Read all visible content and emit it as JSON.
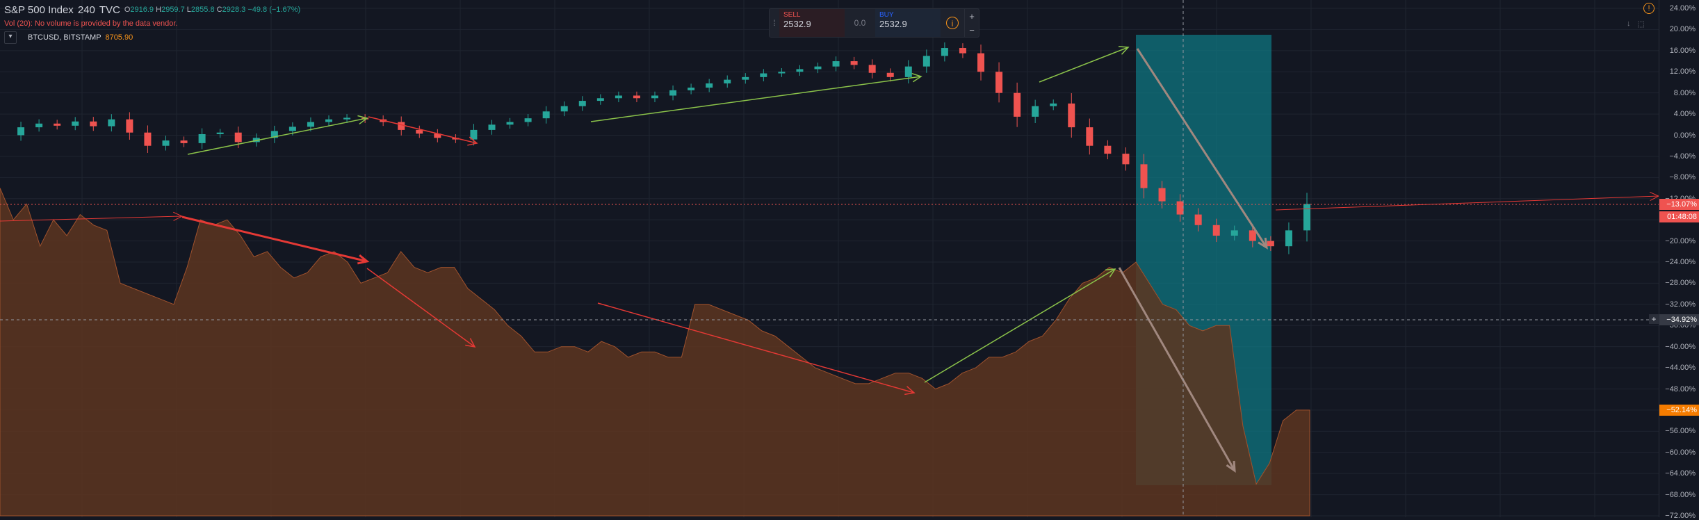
{
  "legend": {
    "symbol": "S&P 500 Index",
    "interval": "240",
    "exchange": "TVC",
    "open_label": "O",
    "open": "2916.9",
    "high_label": "H",
    "high": "2959.7",
    "low_label": "L",
    "low": "2855.8",
    "close_label": "C",
    "close": "2928.3",
    "change": "−49.8 (−1.67%)",
    "volume_notice": "Vol (20): No volume is provided by the data vendor.",
    "compare_symbol": "BTCUSD, BITSTAMP",
    "compare_value": "8705.90",
    "collapse_icon": "chevron-down-icon"
  },
  "trade": {
    "sell_label": "SELL",
    "sell_price": "2532.9",
    "spread": "0.0",
    "buy_label": "BUY",
    "buy_price": "2532.9",
    "plus": "+",
    "minus": "−",
    "info_glyph": "i",
    "grip_glyph": "⁞"
  },
  "top_icons": {
    "alert_glyph": "!",
    "down_glyph": "↓",
    "expand_glyph": "⬚"
  },
  "crosshair_button": "+",
  "price_axis": {
    "ticks": [
      "24.00%",
      "20.00%",
      "16.00%",
      "12.00%",
      "8.00%",
      "4.00%",
      "0.00%",
      "−4.00%",
      "−8.00%",
      "−12.00%",
      "−16.00%",
      "−20.00%",
      "−24.00%",
      "−28.00%",
      "−32.00%",
      "−36.00%",
      "−40.00%",
      "−44.00%",
      "−48.00%",
      "−52.00%",
      "−56.00%",
      "−60.00%",
      "−64.00%",
      "−68.00%",
      "−72.00%"
    ],
    "labels": {
      "spx_last": "−13.07%",
      "countdown": "01:48:08",
      "crosshair": "−34.92%",
      "btc_last": "−52.14%"
    }
  },
  "colors": {
    "background": "#131722",
    "up": "#26a69a",
    "down": "#ef5350",
    "area_fill": "#5d3520",
    "area_line": "#a0522d",
    "highlight": "#0e7c86",
    "arrow_green": "#8bc34a",
    "arrow_red": "#e53935",
    "arrow_gray": "#a1887f",
    "btc_label": "#f57c00"
  },
  "chart_data": {
    "type": "line",
    "ylim": [
      -72,
      24
    ],
    "y_unit": "%",
    "series": [
      {
        "name": "S&P 500 Index",
        "values": [
          0.0,
          1.5,
          2.2,
          1.8,
          2.6,
          1.7,
          3.0,
          0.5,
          -2.0,
          -1.0,
          -1.5,
          0.2,
          0.5,
          -1.3,
          -0.5,
          0.8,
          1.6,
          2.5,
          3.0,
          3.3,
          3.0,
          2.5,
          1.0,
          0.3,
          -0.5,
          -0.8,
          1.0,
          2.0,
          2.5,
          3.2,
          4.5,
          5.5,
          6.5,
          7.0,
          7.5,
          7.0,
          7.5,
          8.5,
          9.0,
          9.8,
          10.5,
          11.0,
          11.7,
          12.0,
          12.5,
          13.0,
          14.0,
          13.3,
          11.8,
          11.0,
          13.0,
          15.0,
          16.5,
          15.5,
          12.0,
          8.0,
          3.5,
          5.5,
          6.0,
          1.5,
          -2.0,
          -3.5,
          -5.5,
          -10.0,
          -12.5,
          -15.0,
          -17.0,
          -19.0,
          -18.0,
          -20.0,
          -21.0,
          -18.0,
          -13.0
        ]
      },
      {
        "name": "BTCUSD, BITSTAMP",
        "values": [
          -10,
          -16,
          -13,
          -21,
          -16,
          -19,
          -15,
          -17,
          -18,
          -28,
          -29,
          -30,
          -31,
          -32,
          -25,
          -16,
          -17,
          -16,
          -19,
          -23,
          -22,
          -25,
          -27,
          -26,
          -23,
          -22,
          -24,
          -28,
          -27,
          -26,
          -22,
          -25,
          -26,
          -25,
          -25,
          -29,
          -31,
          -33,
          -36,
          -38,
          -41,
          -41,
          -40,
          -40,
          -41,
          -39,
          -40,
          -42,
          -41,
          -41,
          -42,
          -42,
          -32,
          -32,
          -33,
          -34,
          -35,
          -37,
          -38,
          -40,
          -42,
          -44,
          -45,
          -46,
          -47,
          -47,
          -46,
          -45,
          -45,
          -46,
          -48,
          -47,
          -45,
          -44,
          -42,
          -42,
          -41,
          -39,
          -38,
          -35,
          -31,
          -28,
          -27,
          -25,
          -26,
          -24,
          -28,
          -32,
          -33,
          -36,
          -37,
          -36,
          -36,
          -55,
          -66,
          -62,
          -54,
          -52,
          -52
        ]
      }
    ]
  }
}
